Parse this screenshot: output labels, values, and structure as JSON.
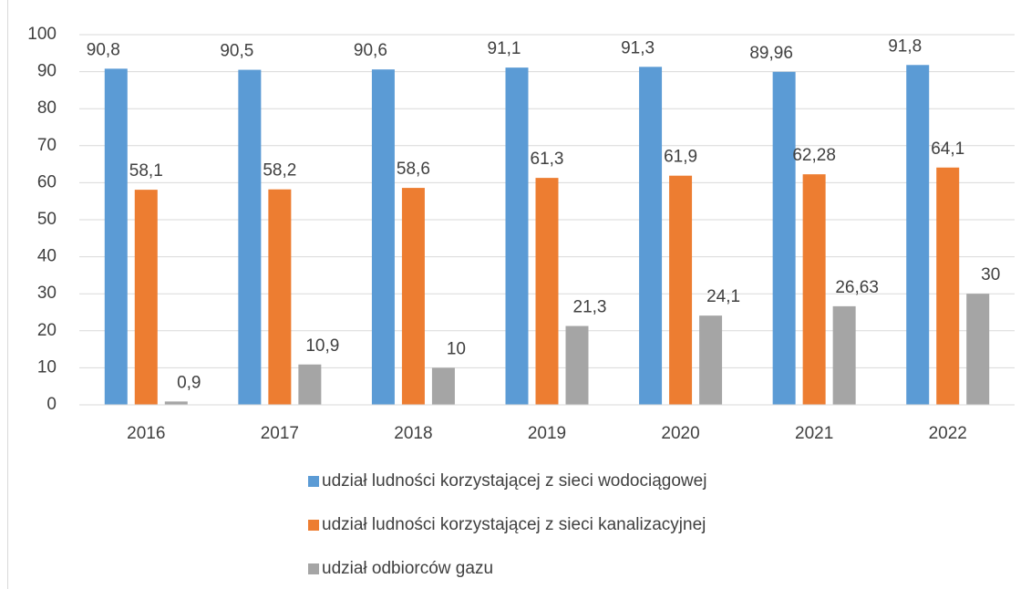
{
  "chart_data": {
    "type": "bar",
    "categories": [
      "2016",
      "2017",
      "2018",
      "2019",
      "2020",
      "2021",
      "2022"
    ],
    "series": [
      {
        "name": "udział ludności korzystającej z sieci wodociągowej",
        "color": "#5b9bd5",
        "values": [
          90.8,
          90.5,
          90.6,
          91.1,
          91.3,
          89.96,
          91.8
        ],
        "value_labels": [
          "90,8",
          "90,5",
          "90,6",
          "91,1",
          "91,3",
          "89,96",
          "91,8"
        ]
      },
      {
        "name": "udział ludności korzystającej z sieci kanalizacyjnej",
        "color": "#ed7d31",
        "values": [
          58.1,
          58.2,
          58.6,
          61.3,
          61.9,
          62.28,
          64.1
        ],
        "value_labels": [
          "58,1",
          "58,2",
          "58,6",
          "61,3",
          "61,9",
          "62,28",
          "64,1"
        ]
      },
      {
        "name": "udział odbiorców gazu",
        "color": "#a5a5a5",
        "values": [
          0.9,
          10.9,
          10,
          21.3,
          24.1,
          26.63,
          30
        ],
        "value_labels": [
          "0,9",
          "10,9",
          "10",
          "21,3",
          "24,1",
          "26,63",
          "30"
        ]
      }
    ],
    "ylim": [
      0,
      100
    ],
    "yticks": [
      0,
      10,
      20,
      30,
      40,
      50,
      60,
      70,
      80,
      90,
      100
    ],
    "grid": true
  }
}
